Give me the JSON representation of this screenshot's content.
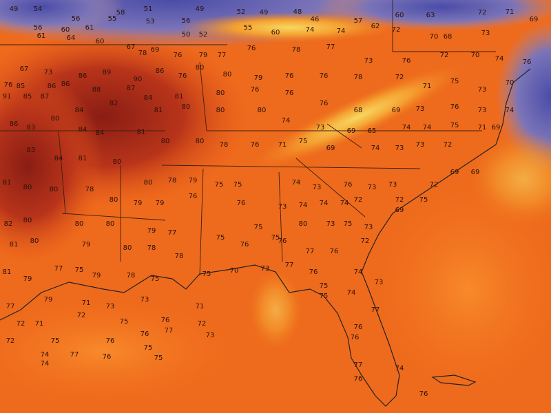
{
  "map": {
    "temperature_labels": [
      49,
      54,
      56,
      55,
      58,
      51,
      49,
      52,
      49,
      48,
      46,
      57,
      62,
      60,
      63,
      72,
      71,
      56,
      60,
      61,
      53,
      56,
      50,
      52,
      55,
      60,
      74,
      74,
      72,
      70,
      68,
      73,
      69,
      61,
      64,
      60,
      67,
      78,
      69,
      76,
      79,
      77,
      76,
      78,
      77,
      73,
      76,
      72,
      70,
      74,
      76,
      67,
      73,
      86,
      89,
      90,
      86,
      76,
      80,
      80,
      79,
      76,
      76,
      78,
      72,
      71,
      75,
      73,
      70,
      76,
      85,
      86,
      86,
      88,
      87,
      84,
      81,
      80,
      76,
      76,
      76,
      68,
      69,
      73,
      76,
      73,
      74,
      91,
      85,
      87,
      84,
      82,
      81,
      80,
      80,
      80,
      74,
      73,
      69,
      65,
      74,
      74,
      75,
      71,
      69,
      86,
      83,
      80,
      84,
      84,
      81,
      80,
      80,
      78,
      76,
      71,
      75,
      69,
      74,
      73,
      73,
      72,
      83,
      84,
      81,
      80,
      80,
      78,
      79,
      75,
      75,
      74,
      73,
      76,
      73,
      73,
      72,
      69,
      69,
      81,
      80,
      80,
      78,
      80,
      79,
      79,
      76,
      76,
      73,
      74,
      74,
      74,
      72,
      72,
      75,
      82,
      80,
      80,
      80,
      79,
      77,
      75,
      75,
      75,
      80,
      73,
      75,
      73,
      69,
      81,
      80,
      79,
      80,
      78,
      78,
      76,
      76,
      77,
      76,
      72,
      81,
      79,
      77,
      75,
      79,
      78,
      75,
      75,
      70,
      73,
      77,
      76,
      75,
      74,
      73,
      77,
      79,
      71,
      73,
      73,
      71,
      75,
      74,
      77,
      72,
      71,
      72,
      75,
      76,
      72,
      73,
      76,
      72,
      75,
      76,
      76,
      77,
      75,
      76,
      74,
      77,
      76,
      75,
      77,
      74,
      74,
      76,
      76
    ]
  }
}
